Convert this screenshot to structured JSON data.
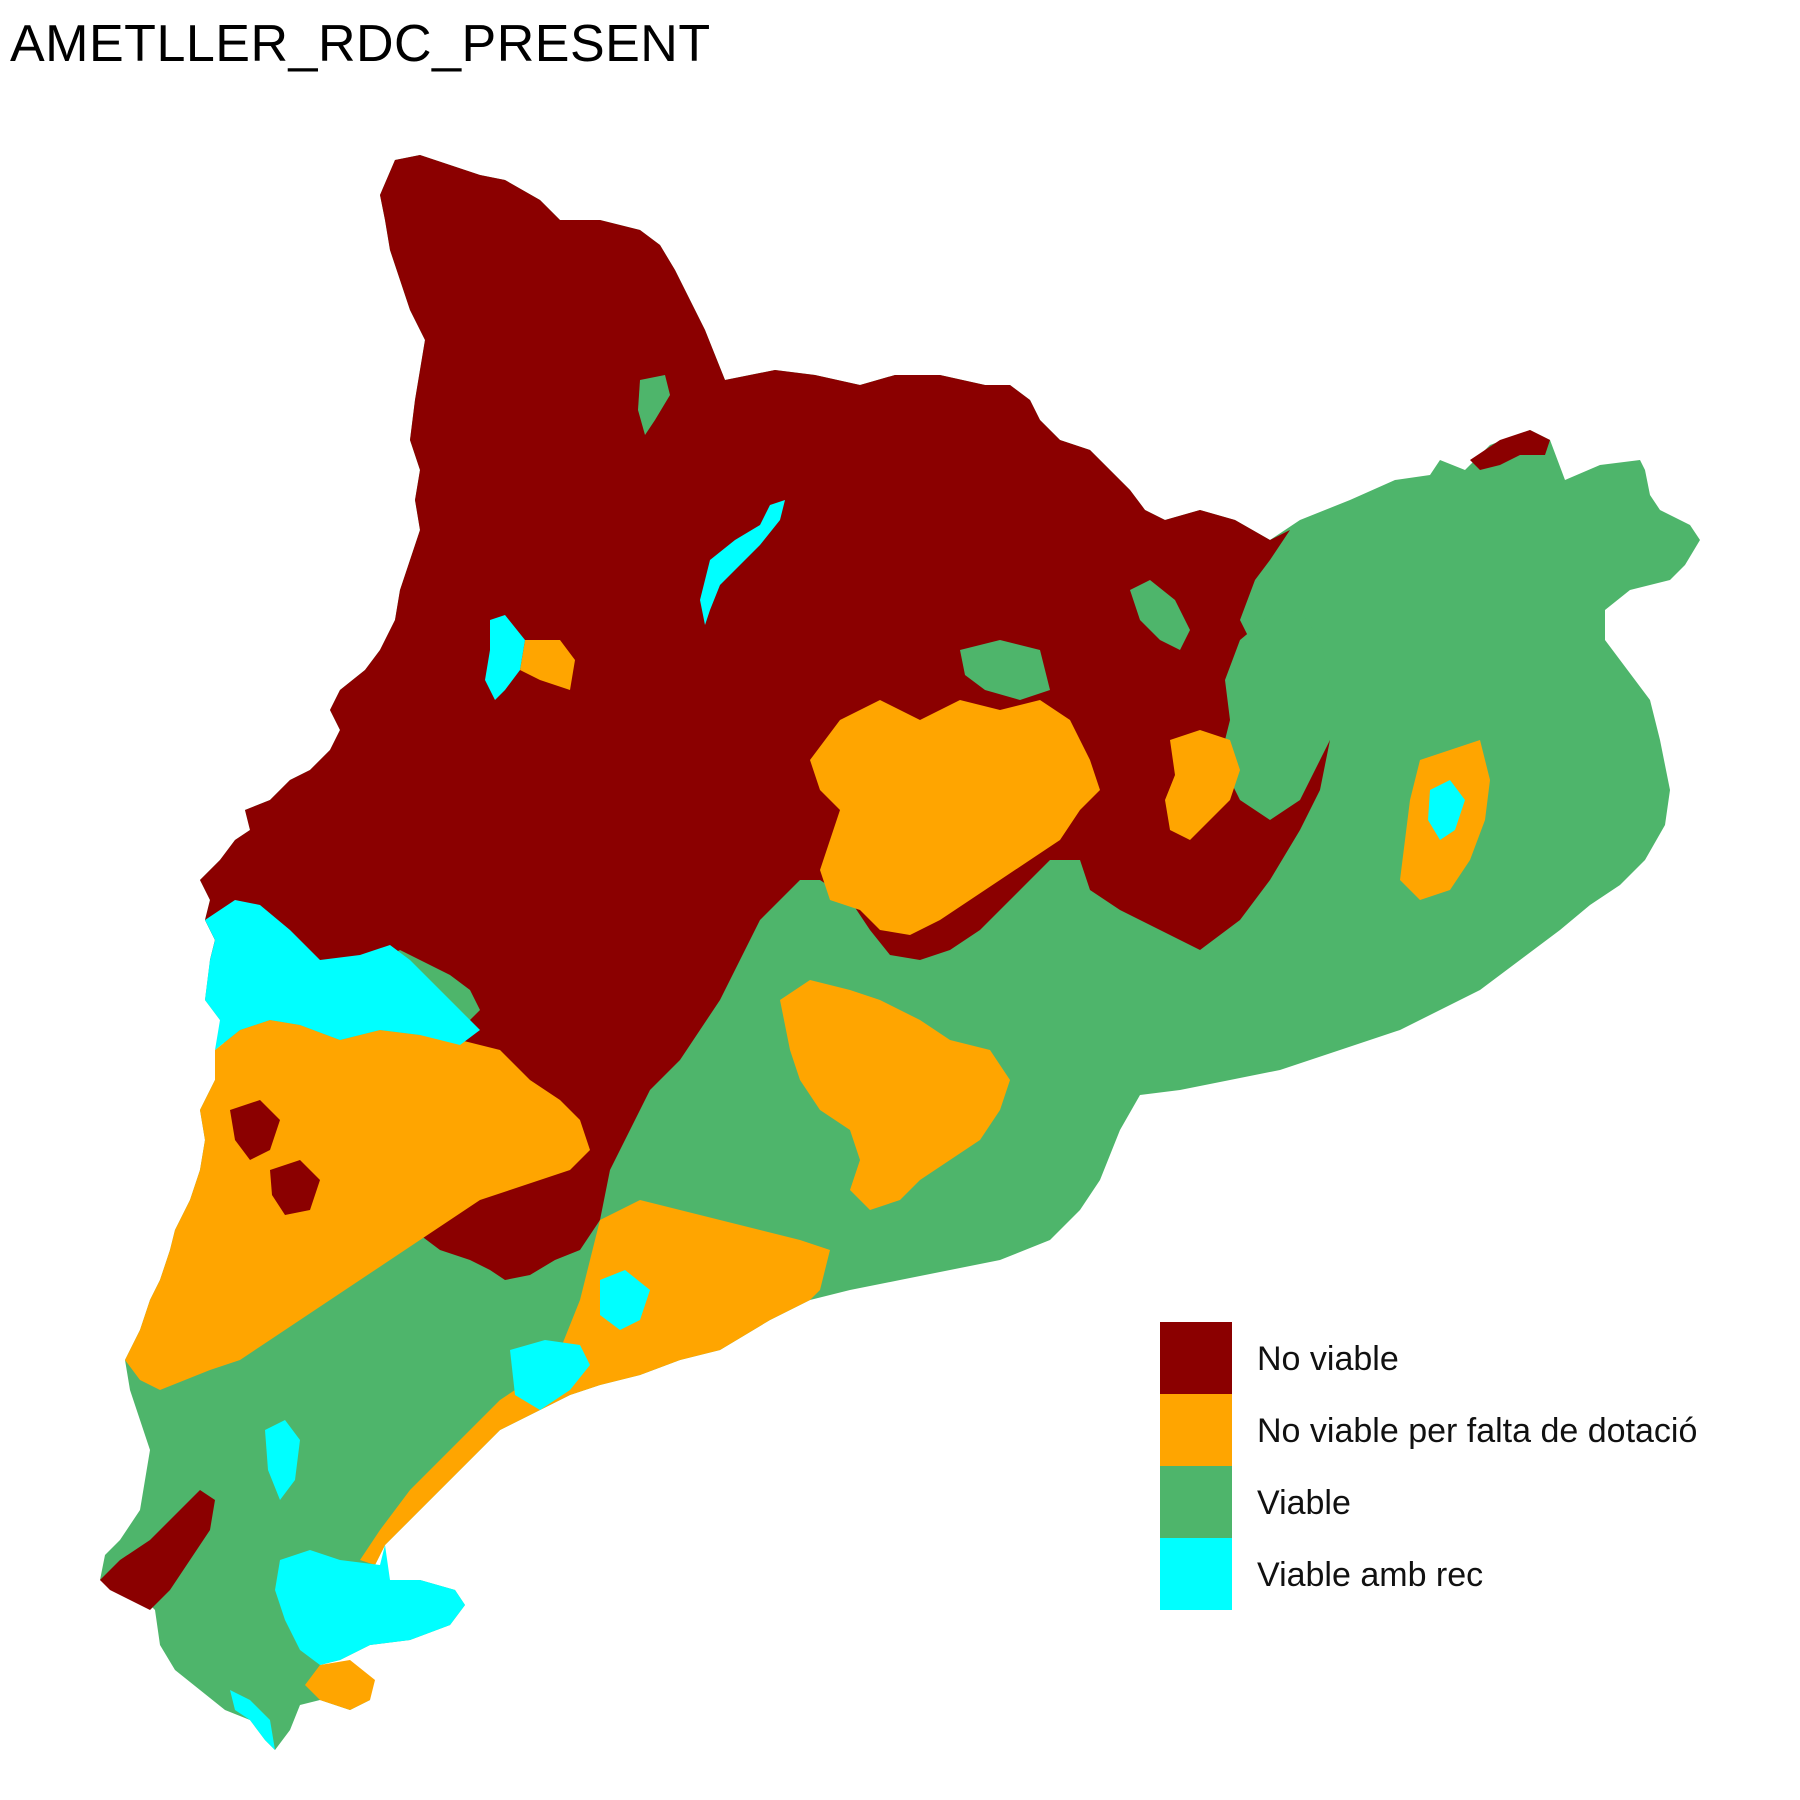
{
  "title": "AMETLLER_RDC_PRESENT",
  "colors": {
    "no_viable": "#8B0000",
    "no_viable_dotacio": "#FFA500",
    "viable": "#4EB56B",
    "viable_rec": "#00FFFF",
    "background": "#FFFFFF"
  },
  "legend": {
    "items": [
      {
        "label": "No viable",
        "color": "#8B0000"
      },
      {
        "label": "No viable per falta de dotació",
        "color": "#FFA500"
      },
      {
        "label": "Viable",
        "color": "#4EB56B"
      },
      {
        "label": "Viable amb rec",
        "color": "#00FFFF"
      }
    ]
  }
}
